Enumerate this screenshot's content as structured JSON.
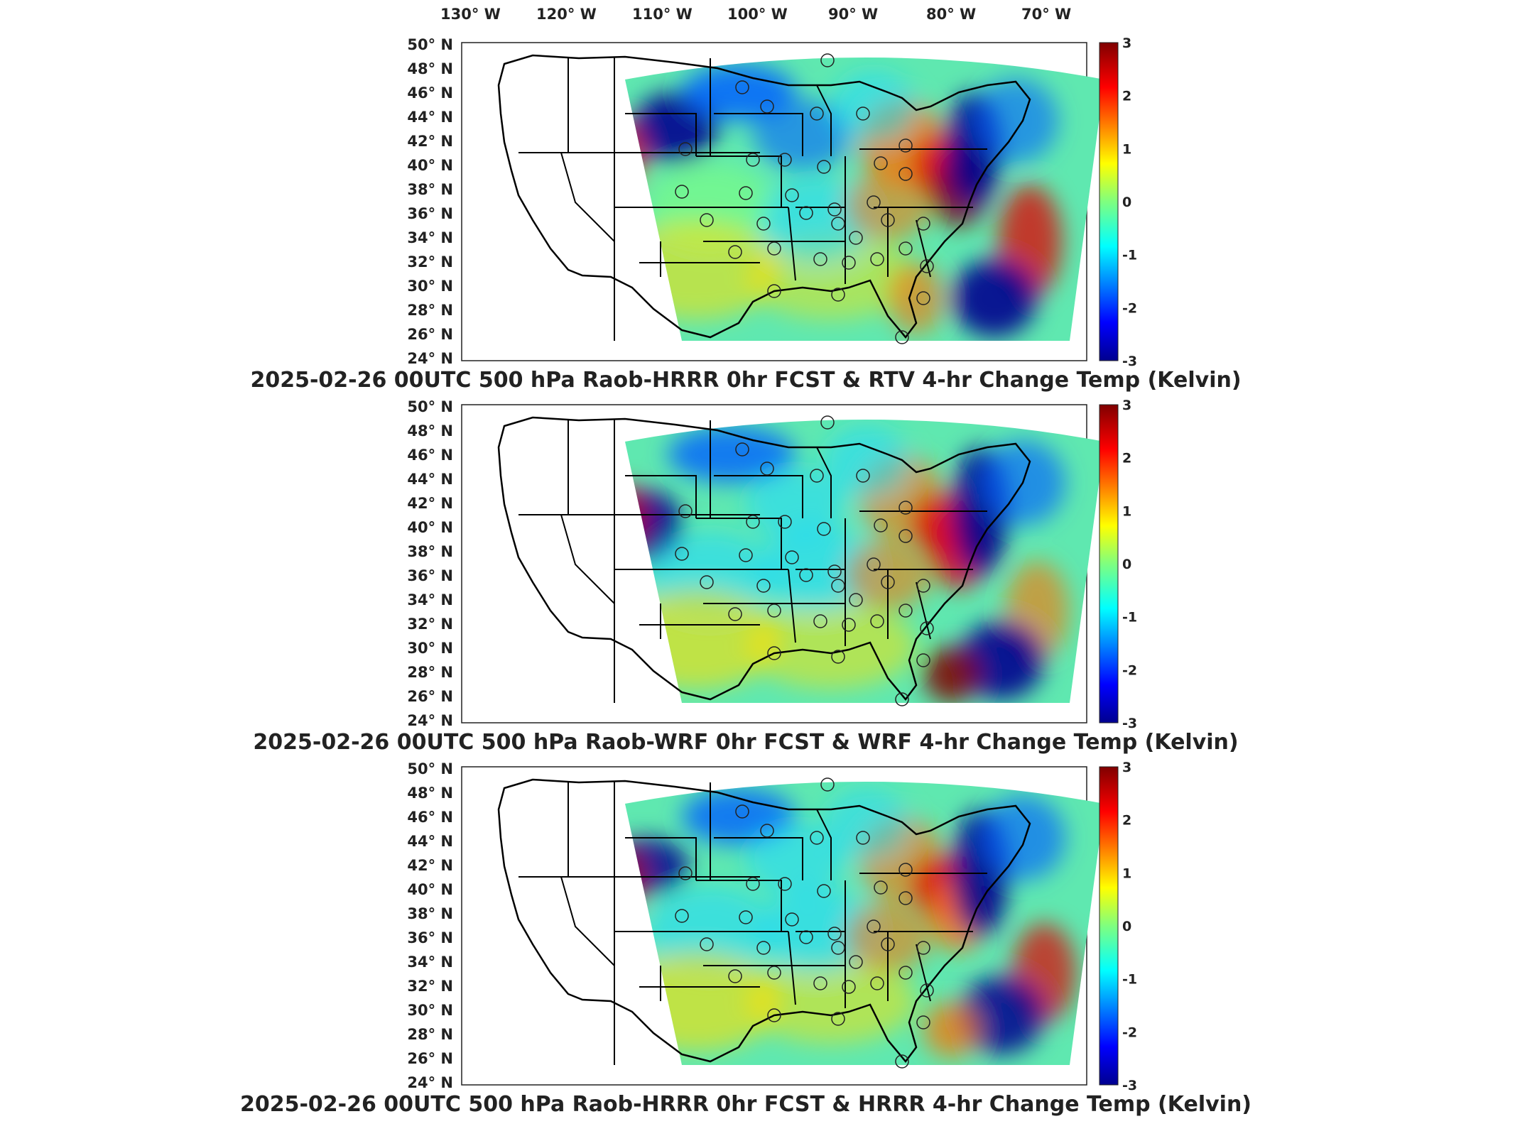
{
  "figure": {
    "longitude_ticks": [
      "130° W",
      "120° W",
      "110° W",
      "100° W",
      "90° W",
      "80° W",
      "70° W"
    ],
    "latitude_ticks": [
      "50° N",
      "48° N",
      "46° N",
      "44° N",
      "42° N",
      "40° N",
      "38° N",
      "36° N",
      "34° N",
      "32° N",
      "30° N",
      "28° N",
      "26° N",
      "24° N"
    ],
    "colorbar": {
      "colormap": "jet",
      "ticks": [
        "3",
        "2",
        "1",
        "0",
        "-1",
        "-2",
        "-3"
      ],
      "min": -3,
      "max": 3
    },
    "colors": {
      "dark_blue": "#00008f",
      "blue": "#0060ff",
      "cyan": "#20d8ff",
      "green": "#7fff7f",
      "yellow": "#ffe000",
      "orange": "#ff7000",
      "red": "#e00000",
      "dark_red": "#800000"
    }
  },
  "panels": [
    {
      "title": "2025-02-26 00UTC 500 hPa Raob-HRRR 0hr FCST & RTV 4-hr Change Temp (Kelvin)"
    },
    {
      "title": "2025-02-26 00UTC 500 hPa Raob-WRF 0hr FCST & WRF 4-hr Change Temp (Kelvin)"
    },
    {
      "title": "2025-02-26 00UTC 500 hPa Raob-HRRR 0hr FCST & HRRR 4-hr Change Temp (Kelvin)"
    }
  ]
}
